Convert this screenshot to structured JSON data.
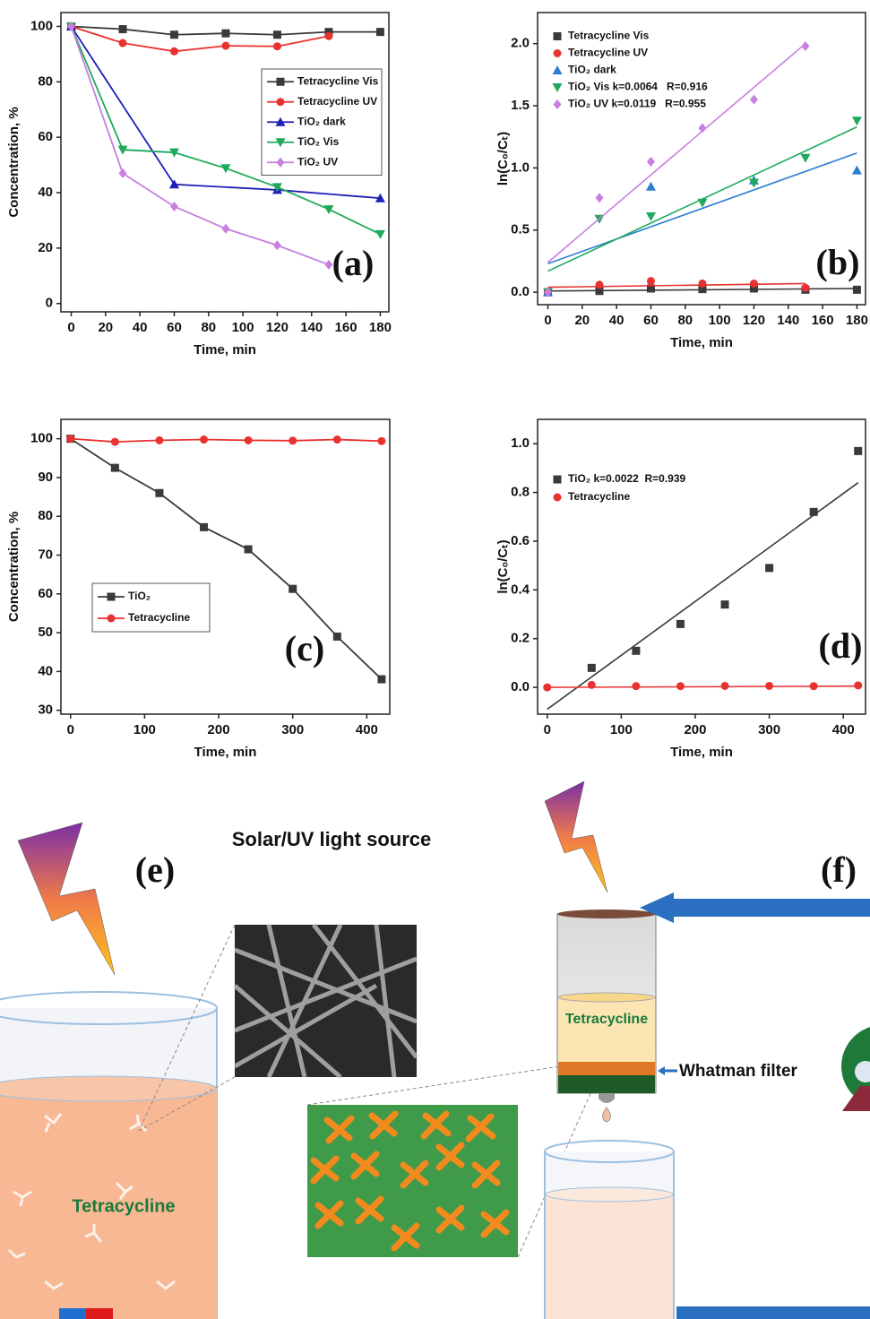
{
  "chart_data": [
    {
      "type": "line",
      "xlabel": "Time, min",
      "ylabel": "Concentration, %",
      "annotation": "(a)",
      "xlim": [
        -6,
        185
      ],
      "ylim": [
        -3,
        105
      ],
      "xticks": [
        0,
        20,
        40,
        60,
        80,
        100,
        120,
        140,
        160,
        180
      ],
      "yticks": [
        0,
        20,
        40,
        60,
        80,
        100
      ],
      "legend": "upper right",
      "series": [
        {
          "name": "Tetracycline Vis",
          "color": "#3a3a3a",
          "marker": "square",
          "x": [
            0,
            30,
            60,
            90,
            120,
            150,
            180
          ],
          "values": [
            100,
            99,
            97,
            97.5,
            97,
            98,
            98
          ]
        },
        {
          "name": "Tetracycline UV",
          "color": "#e8322f",
          "marker": "circle",
          "x": [
            0,
            30,
            60,
            90,
            120,
            150
          ],
          "values": [
            100,
            94,
            91,
            93,
            92.8,
            96.5
          ]
        },
        {
          "name": "TiO₂ dark",
          "color": "#1f1fb8",
          "marker": "triangle-up",
          "x": [
            0,
            60,
            120,
            180
          ],
          "values": [
            100,
            43,
            41,
            38
          ]
        },
        {
          "name": "TiO₂ Vis",
          "color": "#1eaa5a",
          "marker": "triangle-down",
          "x": [
            0,
            30,
            60,
            90,
            120,
            150,
            180
          ],
          "values": [
            100,
            55.5,
            54.5,
            48.8,
            42,
            34,
            25
          ]
        },
        {
          "name": "TiO₂ UV",
          "color": "#c77fe0",
          "marker": "diamond",
          "x": [
            0,
            30,
            60,
            90,
            120,
            150
          ],
          "values": [
            100,
            47,
            35,
            27,
            21,
            14
          ]
        }
      ]
    },
    {
      "type": "scatter",
      "xlabel": "Time, min",
      "ylabel": "ln(C₀/Cₜ)",
      "annotation": "(b)",
      "xlim": [
        -6,
        185
      ],
      "ylim": [
        -0.1,
        2.25
      ],
      "xticks": [
        0,
        20,
        40,
        60,
        80,
        100,
        120,
        140,
        160,
        180
      ],
      "yticks": [
        {
          "value": 0,
          "label": "0.0"
        },
        0.5,
        {
          "value": 1,
          "label": "1.0"
        },
        1.5,
        {
          "value": 2,
          "label": "2.0"
        }
      ],
      "legend": "upper left",
      "series": [
        {
          "name": "Tetracycline Vis",
          "color": "#3a3a3a",
          "marker": "square",
          "x": [
            0,
            30,
            60,
            90,
            120,
            150,
            180
          ],
          "values": [
            0,
            0.01,
            0.03,
            0.025,
            0.03,
            0.02,
            0.02
          ],
          "fit_x": [
            0,
            180
          ],
          "fit": [
            0.01,
            0.03
          ]
        },
        {
          "name": "Tetracycline UV",
          "color": "#e8322f",
          "marker": "circle",
          "x": [
            0,
            30,
            60,
            90,
            120,
            150
          ],
          "values": [
            0,
            0.06,
            0.09,
            0.07,
            0.07,
            0.035
          ],
          "fit_x": [
            0,
            150
          ],
          "fit": [
            0.04,
            0.07
          ]
        },
        {
          "name": "TiO₂ dark",
          "color": "#2a7dd1",
          "marker": "triangle-up",
          "x": [
            0,
            60,
            120,
            180
          ],
          "values": [
            0,
            0.85,
            0.9,
            0.98
          ],
          "fit_x": [
            0,
            180
          ],
          "fit": [
            0.23,
            1.12
          ]
        },
        {
          "name": "TiO₂ Vis k=0.0064   R=0.916",
          "color": "#1eaa5a",
          "marker": "triangle-down",
          "x": [
            0,
            30,
            60,
            90,
            120,
            150,
            180
          ],
          "values": [
            0,
            0.59,
            0.61,
            0.72,
            0.88,
            1.08,
            1.38
          ],
          "fit_x": [
            0,
            180
          ],
          "fit": [
            0.17,
            1.33
          ]
        },
        {
          "name": "TiO₂ UV k=0.0119   R=0.955",
          "color": "#c77fe0",
          "marker": "diamond",
          "x": [
            0,
            30,
            60,
            90,
            120,
            150
          ],
          "values": [
            0,
            0.76,
            1.05,
            1.32,
            1.55,
            1.98
          ],
          "fit_x": [
            0,
            150
          ],
          "fit": [
            0.24,
            2.0
          ]
        }
      ]
    },
    {
      "type": "line",
      "xlabel": "Time, min",
      "ylabel": "Concentration, %",
      "annotation": "(c)",
      "xlim": [
        -13,
        431
      ],
      "ylim": [
        29,
        105
      ],
      "xticks": [
        0,
        100,
        200,
        300,
        400
      ],
      "yticks": [
        30,
        40,
        50,
        60,
        70,
        80,
        90,
        100
      ],
      "legend": "lower left",
      "series": [
        {
          "name": "TiO₂",
          "color": "#3a3a3a",
          "marker": "square",
          "x": [
            0,
            60,
            120,
            180,
            240,
            300,
            360,
            420
          ],
          "values": [
            100,
            92.5,
            86,
            77.2,
            71.5,
            61.3,
            49,
            38
          ]
        },
        {
          "name": "Tetracycline",
          "color": "#e8322f",
          "marker": "circle",
          "x": [
            0,
            60,
            120,
            180,
            240,
            300,
            360,
            420
          ],
          "values": [
            100,
            99.2,
            99.6,
            99.8,
            99.6,
            99.5,
            99.8,
            99.4
          ]
        }
      ]
    },
    {
      "type": "scatter",
      "xlabel": "Time, min",
      "ylabel": "ln(C₀/Cₜ)",
      "annotation": "(d)",
      "xlim": [
        -13,
        430
      ],
      "ylim": [
        -0.11,
        1.1
      ],
      "xticks": [
        0,
        100,
        200,
        300,
        400
      ],
      "yticks": [
        {
          "value": 0,
          "label": "0.0"
        },
        0.2,
        0.4,
        0.6,
        0.8,
        {
          "value": 1,
          "label": "1.0"
        }
      ],
      "legend": "upper left",
      "series": [
        {
          "name": "TiO₂ k=0.0022  R=0.939",
          "color": "#3a3a3a",
          "marker": "square",
          "x": [
            60,
            120,
            180,
            240,
            300,
            360,
            420
          ],
          "values": [
            0.08,
            0.15,
            0.26,
            0.34,
            0.49,
            0.72,
            0.97
          ],
          "fit_x": [
            0,
            420
          ],
          "fit": [
            -0.09,
            0.84
          ]
        },
        {
          "name": "Tetracycline",
          "color": "#e8322f",
          "marker": "circle",
          "x": [
            0,
            60,
            120,
            180,
            240,
            300,
            360,
            420
          ],
          "values": [
            0,
            0.01,
            0.005,
            0.005,
            0.006,
            0.006,
            0.005,
            0.008
          ],
          "fit_x": [
            0,
            420
          ],
          "fit": [
            0,
            0.005
          ]
        }
      ]
    }
  ],
  "diagram": {
    "light_source": "Solar/UV light source",
    "panel_e": "(e)",
    "panel_f": "(f)",
    "beaker_label": "Tetracycline",
    "column_label": "Tetracycline",
    "filter_label": "Whatman filter"
  }
}
